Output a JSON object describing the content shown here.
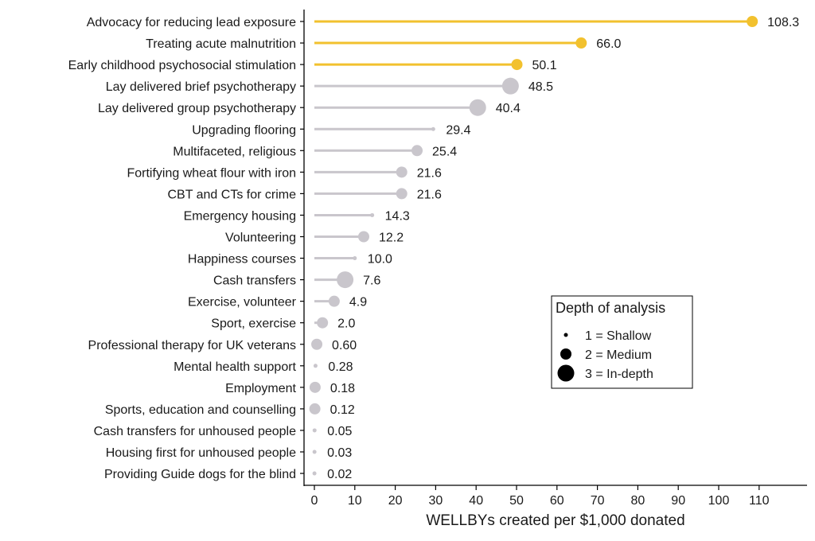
{
  "chart_data": {
    "type": "lollipop",
    "title": "",
    "xlabel": "WELLBYs created per $1,000 donated",
    "ylabel": "",
    "xlim": [
      -2.5,
      122
    ],
    "xticks": [
      0,
      10,
      20,
      30,
      40,
      50,
      60,
      70,
      80,
      90,
      100,
      110
    ],
    "grid": false,
    "colors": {
      "highlight": "#f2c12e",
      "default": "#c9c6cc"
    },
    "categories": [
      "Advocacy for reducing lead exposure",
      "Treating acute malnutrition",
      "Early childhood psychosocial stimulation",
      "Lay delivered brief psychotherapy",
      "Lay delivered group psychotherapy",
      "Upgrading flooring",
      "Multifaceted, religious",
      "Fortifying wheat flour with iron",
      "CBT and CTs for crime",
      "Emergency housing",
      "Volunteering",
      "Happiness courses",
      "Cash transfers",
      "Exercise, volunteer",
      "Sport, exercise",
      "Professional therapy for UK veterans",
      "Mental health support",
      "Employment",
      "Sports, education and counselling",
      "Cash transfers for unhoused people",
      "Housing first for unhoused people",
      "Providing Guide dogs for the blind"
    ],
    "values": [
      108.3,
      66.0,
      50.1,
      48.5,
      40.4,
      29.4,
      25.4,
      21.6,
      21.6,
      14.3,
      12.2,
      10.0,
      7.6,
      4.9,
      2.0,
      0.6,
      0.28,
      0.18,
      0.12,
      0.05,
      0.03,
      0.02
    ],
    "value_labels": [
      "108.3",
      "66.0",
      "50.1",
      "48.5",
      "40.4",
      "29.4",
      "25.4",
      "21.6",
      "21.6",
      "14.3",
      "12.2",
      "10.0",
      "7.6",
      "4.9",
      "2.0",
      "0.60",
      "0.28",
      "0.18",
      "0.12",
      "0.05",
      "0.03",
      "0.02"
    ],
    "depth": [
      2,
      2,
      2,
      3,
      3,
      1,
      2,
      2,
      2,
      1,
      2,
      1,
      3,
      2,
      2,
      2,
      1,
      2,
      2,
      1,
      1,
      1
    ],
    "highlighted": [
      true,
      true,
      true,
      false,
      false,
      false,
      false,
      false,
      false,
      false,
      false,
      false,
      false,
      false,
      false,
      false,
      false,
      false,
      false,
      false,
      false,
      false
    ],
    "legend": {
      "title": "Depth of analysis",
      "position": "right-center",
      "items": [
        {
          "depth": 1,
          "label": "1 = Shallow"
        },
        {
          "depth": 2,
          "label": "2 = Medium"
        },
        {
          "depth": 3,
          "label": "3 = In-depth"
        }
      ]
    }
  }
}
